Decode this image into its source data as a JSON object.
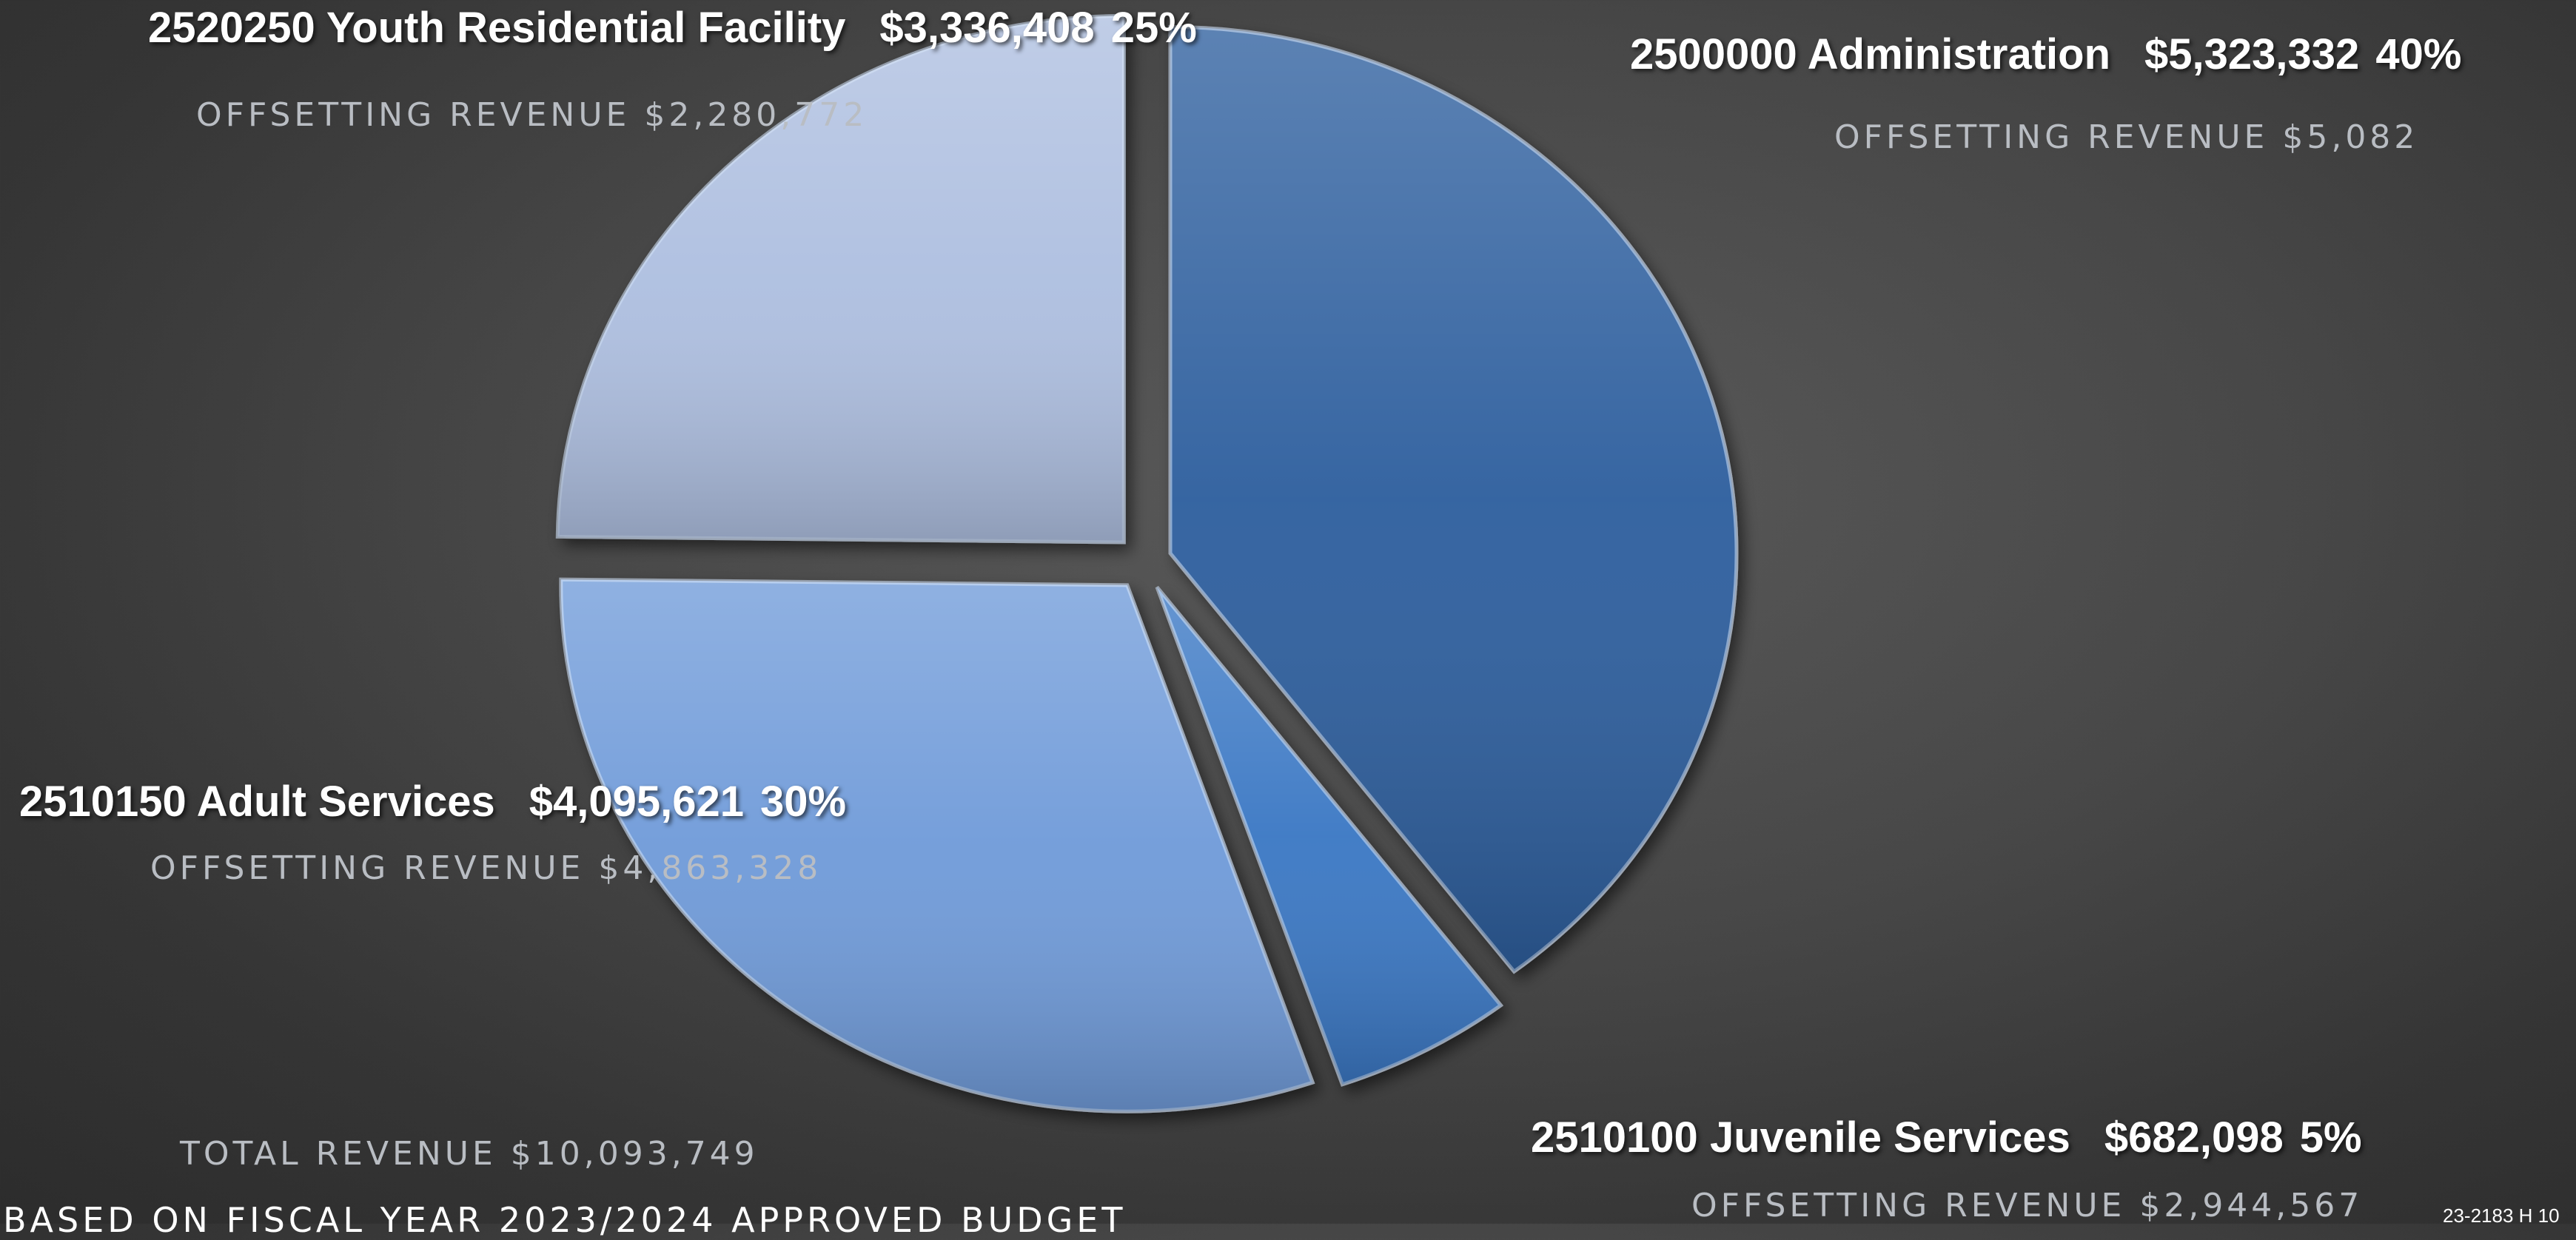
{
  "chart_data": {
    "type": "pie",
    "exploded": true,
    "slices": [
      {
        "code": "2500000",
        "name": "Administration",
        "amount": "$5,323,332",
        "value": 5323332,
        "percent": "40%",
        "offset_label": "OFFSETTING REVENUE $5,082",
        "color": "#2f5f9e"
      },
      {
        "code": "2510100",
        "name": "Juvenile Services",
        "amount": "$682,098",
        "value": 682098,
        "percent": "5%",
        "offset_label": "OFFSETTING REVENUE $2,944,567",
        "color": "#3a78c4"
      },
      {
        "code": "2510150",
        "name": "Adult Services",
        "amount": "$4,095,621",
        "value": 4095621,
        "percent": "30%",
        "offset_label": "OFFSETTING REVENUE $4,863,328",
        "color": "#6f9bd9"
      },
      {
        "code": "2520250",
        "name": "Youth Residential Facility",
        "amount": "$3,336,408",
        "value": 3336408,
        "percent": "25%",
        "offset_label": "OFFSETTING REVENUE $2,280,772",
        "color": "#aebfe0"
      }
    ]
  },
  "total_revenue": "TOTAL REVENUE $10,093,749",
  "footer_note": "BASED ON FISCAL YEAR 2023/2024 APPROVED BUDGET",
  "doc_code": "23-2183 H 10"
}
